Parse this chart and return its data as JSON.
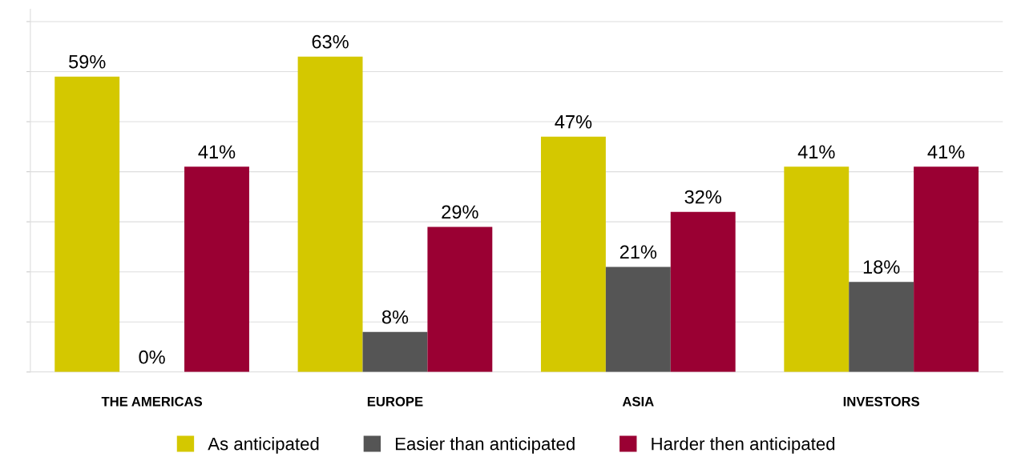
{
  "chart_data": {
    "type": "bar",
    "categories": [
      "THE AMERICAS",
      "EUROPE",
      "ASIA",
      "INVESTORS"
    ],
    "series": [
      {
        "name": "As anticipated",
        "color": "#d4c800",
        "values": [
          59,
          63,
          47,
          41
        ],
        "value_labels": [
          "59%",
          "63%",
          "47%",
          "41%"
        ]
      },
      {
        "name": "Easier than anticipated",
        "color": "#555555",
        "values": [
          0,
          8,
          21,
          18
        ],
        "value_labels": [
          "0%",
          "8%",
          "21%",
          "18%"
        ]
      },
      {
        "name": "Harder then anticipated",
        "color": "#9a0033",
        "values": [
          41,
          29,
          32,
          41
        ],
        "value_labels": [
          "41%",
          "29%",
          "32%",
          "41%"
        ]
      }
    ],
    "tick_labels": "x",
    "grid": "y",
    "legend": "bottom"
  }
}
